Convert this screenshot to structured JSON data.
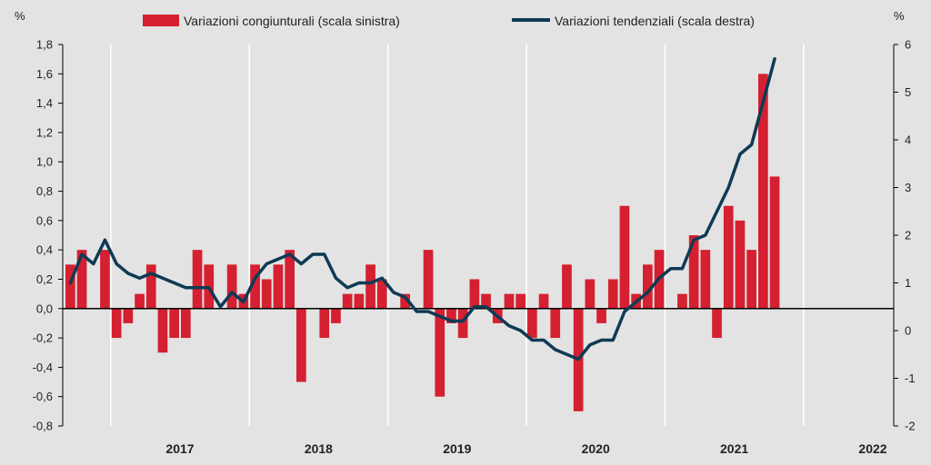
{
  "chart_data": {
    "type": "bar+line",
    "title": "",
    "y_left_unit": "%",
    "y_right_unit": "%",
    "y_left_range": [
      -0.8,
      1.8
    ],
    "y_left_ticks": [
      "1,8",
      "1,6",
      "1,4",
      "1,2",
      "1,0",
      "0,8",
      "0,6",
      "0,4",
      "0,2",
      "0,0",
      "-0,2",
      "-0,4",
      "-0,6",
      "-0,8"
    ],
    "y_right_range": [
      -2,
      6
    ],
    "y_right_ticks": [
      "6",
      "5",
      "4",
      "3",
      "2",
      "1",
      "0",
      "-1",
      "-2"
    ],
    "years": [
      "2017",
      "2018",
      "2019",
      "2020",
      "2021",
      "2022"
    ],
    "start_month": "2016-09",
    "legend": {
      "bars": "Variazioni congiunturali (scala sinistra)",
      "line": "Variazioni tendenziali (scala destra)"
    },
    "colors": {
      "bars": "#d42030",
      "line": "#0e3a54",
      "background": "#e3e3e3"
    },
    "series": [
      {
        "name": "Variazioni congiunturali (scala sinistra)",
        "type": "bar",
        "axis": "left",
        "values": [
          0.3,
          0.4,
          0.0,
          0.4,
          -0.2,
          -0.1,
          0.1,
          0.3,
          -0.3,
          -0.2,
          -0.2,
          0.4,
          0.3,
          0.0,
          0.3,
          0.1,
          0.3,
          0.2,
          0.3,
          0.4,
          -0.5,
          0.0,
          -0.2,
          -0.1,
          0.1,
          0.1,
          0.3,
          0.2,
          0.0,
          0.1,
          0.0,
          0.4,
          -0.6,
          -0.1,
          -0.2,
          0.2,
          0.1,
          -0.1,
          0.1,
          0.1,
          -0.2,
          0.1,
          -0.2,
          0.3,
          -0.7,
          0.2,
          -0.1,
          0.2,
          0.7,
          0.1,
          0.3,
          0.4,
          0.0,
          0.1,
          0.5,
          0.4,
          -0.2,
          0.7,
          0.6,
          0.4,
          1.6,
          0.9
        ]
      },
      {
        "name": "Variazioni tendenziali (scala destra)",
        "type": "line",
        "axis": "right",
        "values": [
          1.0,
          1.6,
          1.4,
          1.9,
          1.4,
          1.2,
          1.1,
          1.2,
          1.1,
          1.0,
          0.9,
          0.9,
          0.9,
          0.5,
          0.8,
          0.6,
          1.1,
          1.4,
          1.5,
          1.6,
          1.4,
          1.6,
          1.6,
          1.1,
          0.9,
          1.0,
          1.0,
          1.1,
          0.8,
          0.7,
          0.4,
          0.4,
          0.3,
          0.2,
          0.2,
          0.5,
          0.5,
          0.3,
          0.1,
          0.0,
          -0.2,
          -0.2,
          -0.4,
          -0.5,
          -0.6,
          -0.3,
          -0.2,
          -0.2,
          0.4,
          0.6,
          0.8,
          1.1,
          1.3,
          1.3,
          1.9,
          2.0,
          2.5,
          3.0,
          3.7,
          3.9,
          4.8,
          5.7
        ]
      }
    ]
  }
}
